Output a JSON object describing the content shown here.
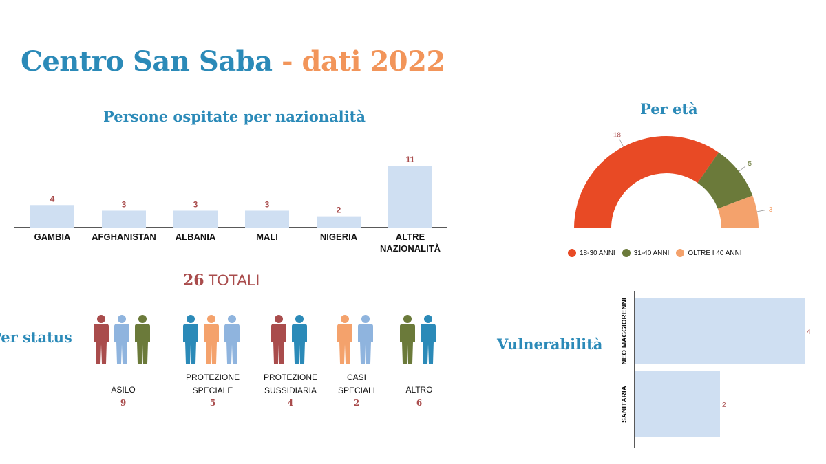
{
  "header": {
    "title_main": "Centro San Saba",
    "title_sep": " - ",
    "title_year": "dati 2022"
  },
  "colors": {
    "title_blue": "#2b8ab8",
    "accent_orange": "#f2955a",
    "bar_fill": "#cfdff2",
    "label_red": "#a94c4c",
    "age_18_30": "#e84a25",
    "age_31_40": "#6b7a3a",
    "age_over40": "#f4a26c"
  },
  "nationality": {
    "title": "Persone ospitate per nazionalità"
  },
  "totals": {
    "number": "26",
    "label": " TOTALI"
  },
  "age": {
    "title": "Per età"
  },
  "status": {
    "title": "Per status",
    "groups": [
      {
        "label_lines": [
          "ASILO"
        ],
        "count": "9",
        "icon_colors": [
          "#a94c4c",
          "#8fb4de",
          "#6b7a3a"
        ]
      },
      {
        "label_lines": [
          "PROTEZIONE",
          "SPECIALE"
        ],
        "count": "5",
        "icon_colors": [
          "#2b8ab8",
          "#f4a26c",
          "#8fb4de"
        ]
      },
      {
        "label_lines": [
          "PROTEZIONE",
          "SUSSIDIARIA"
        ],
        "count": "4",
        "icon_colors": [
          "#a94c4c",
          "#2b8ab8"
        ]
      },
      {
        "label_lines": [
          "CASI",
          "SPECIALI"
        ],
        "count": "2",
        "icon_colors": [
          "#f4a26c",
          "#8fb4de"
        ]
      },
      {
        "label_lines": [
          "ALTRO"
        ],
        "count": "6",
        "icon_colors": [
          "#6b7a3a",
          "#2b8ab8"
        ]
      }
    ]
  },
  "vulnerability": {
    "title": "Vulnerabilità"
  },
  "chart_data": [
    {
      "type": "bar",
      "title": "Persone ospitate per nazionalità",
      "categories": [
        "GAMBIA",
        "AFGHANISTAN",
        "ALBANIA",
        "MALI",
        "NIGERIA",
        "ALTRE NAZIONALITÀ"
      ],
      "values": [
        4,
        3,
        3,
        3,
        2,
        11
      ],
      "ylim": [
        0,
        11
      ]
    },
    {
      "type": "pie",
      "title": "Per età",
      "categories": [
        "18-30 ANNI",
        "31-40 ANNI",
        "OLTRE I 40 ANNI"
      ],
      "values": [
        18,
        5,
        3
      ],
      "colors": [
        "#e84a25",
        "#6b7a3a",
        "#f4a26c"
      ],
      "legend": "bottom"
    },
    {
      "type": "bar",
      "orientation": "horizontal",
      "title": "Vulnerabilità",
      "categories": [
        "NEO MAGGIORENNI",
        "SANITARIA"
      ],
      "values": [
        4,
        2
      ],
      "xlim": [
        0,
        4
      ]
    }
  ]
}
